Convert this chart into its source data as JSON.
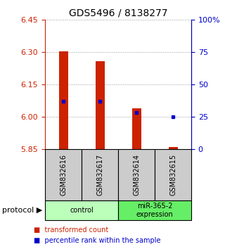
{
  "title": "GDS5496 / 8138277",
  "samples": [
    "GSM832616",
    "GSM832617",
    "GSM832614",
    "GSM832615"
  ],
  "bar_bottoms": [
    5.85,
    5.85,
    5.85,
    5.85
  ],
  "bar_tops": [
    6.305,
    6.258,
    6.04,
    5.862
  ],
  "blue_y": [
    6.072,
    6.072,
    6.022,
    6.002
  ],
  "ylim": [
    5.85,
    6.45
  ],
  "yticks_left": [
    5.85,
    6.0,
    6.15,
    6.3,
    6.45
  ],
  "yticks_right": [
    0,
    25,
    50,
    75,
    100
  ],
  "yticks_right_labels": [
    "0",
    "25",
    "50",
    "75",
    "100%"
  ],
  "bar_color": "#cc2200",
  "blue_color": "#0000cc",
  "groups": [
    {
      "label": "control",
      "indices": [
        0,
        1
      ],
      "color": "#bbffbb"
    },
    {
      "label": "miR-365-2\nexpression",
      "indices": [
        2,
        3
      ],
      "color": "#66ee66"
    }
  ],
  "sample_box_color": "#cccccc",
  "legend_red_label": "transformed count",
  "legend_blue_label": "percentile rank within the sample",
  "protocol_label": "protocol",
  "grid_color": "#999999",
  "bar_width": 0.25
}
